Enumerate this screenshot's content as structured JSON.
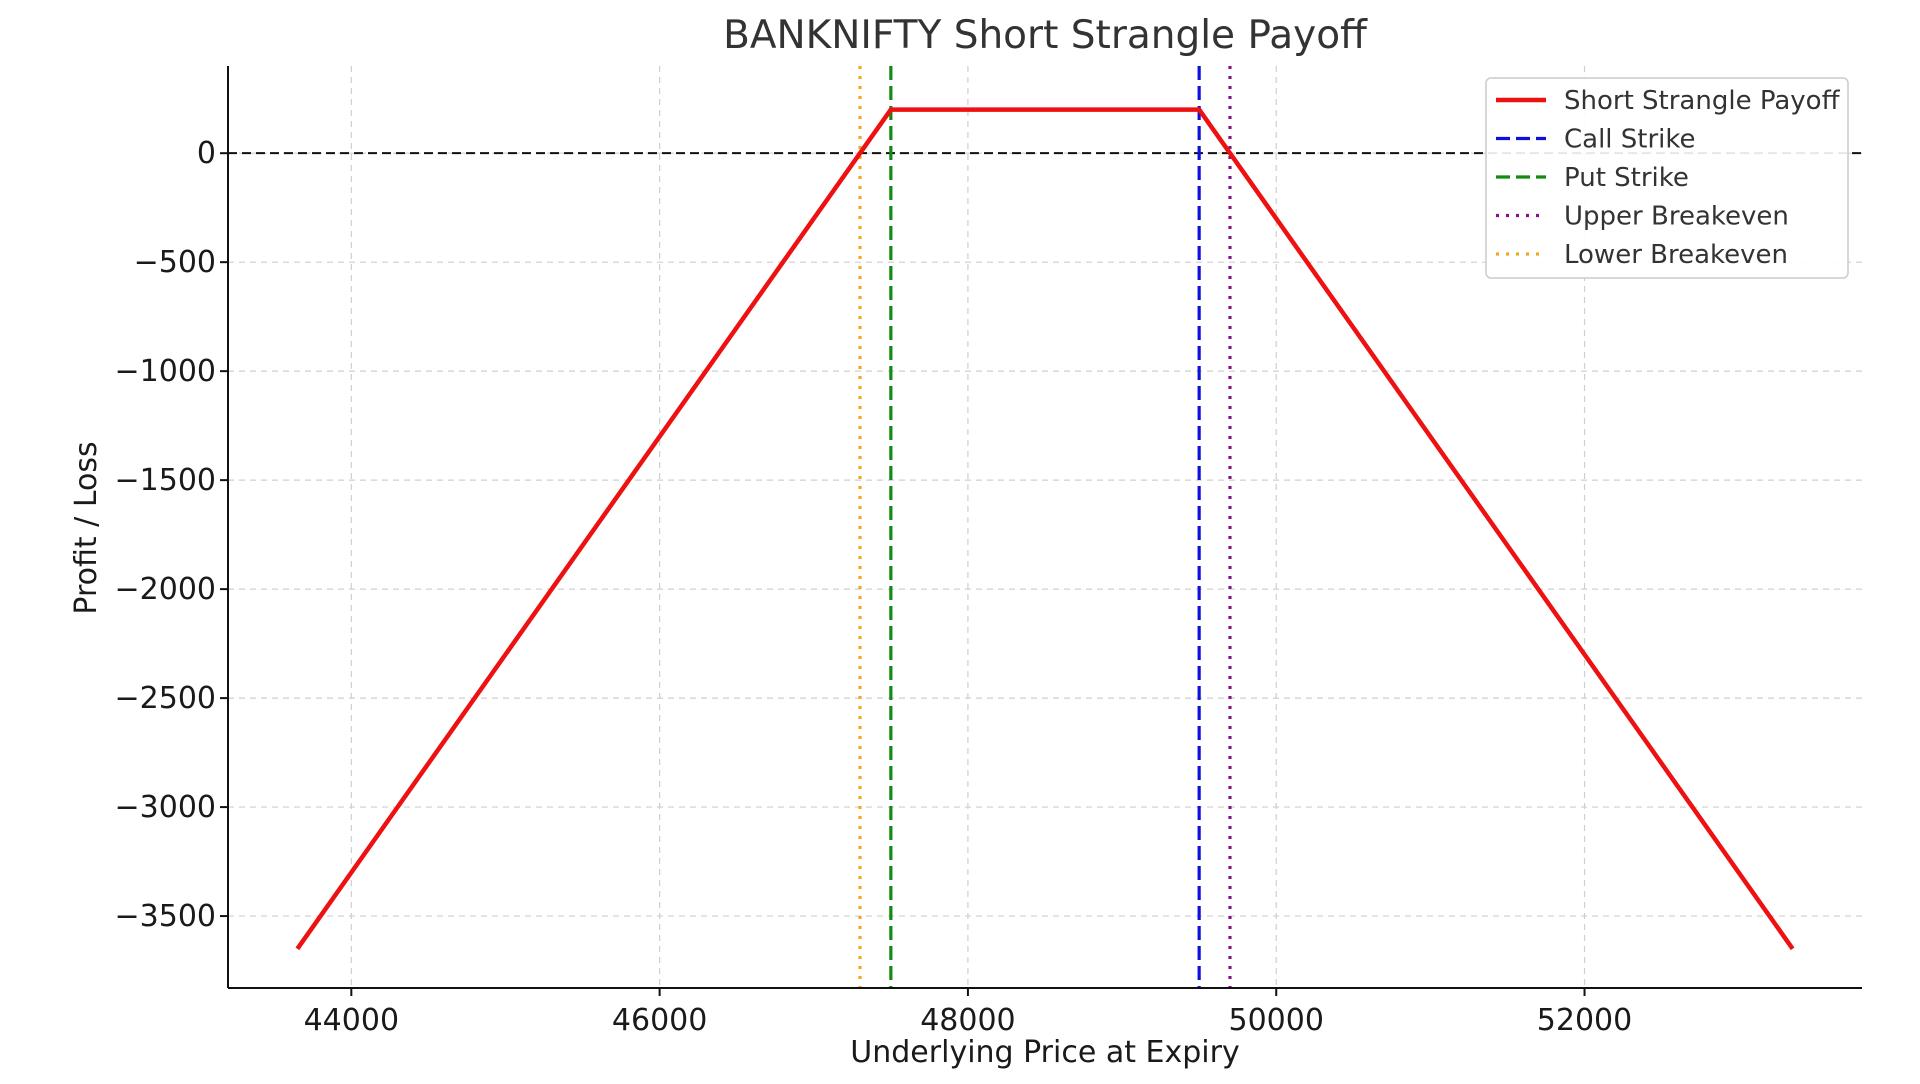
{
  "chart_data": {
    "type": "line",
    "title": "BANKNIFTY Short Strangle Payoff",
    "xlabel": "Underlying Price at Expiry",
    "ylabel": "Profit / Loss",
    "xlim": [
      43200,
      53800
    ],
    "ylim": [
      -3830,
      400
    ],
    "xticks": [
      44000,
      46000,
      48000,
      50000,
      52000
    ],
    "xtick_labels": [
      "44000",
      "46000",
      "48000",
      "50000",
      "52000"
    ],
    "yticks": [
      0,
      -500,
      -1000,
      -1500,
      -2000,
      -2500,
      -3000,
      -3500
    ],
    "ytick_labels": [
      "0",
      "−500",
      "−1000",
      "−1500",
      "−2000",
      "−2500",
      "−3000",
      "−3500"
    ],
    "grid": true,
    "legend_position": "top-right",
    "zero_line": 0,
    "series": [
      {
        "name": "Short Strangle Payoff",
        "color": "#ee1111",
        "style": "solid",
        "x": [
          43650,
          47500,
          49500,
          53350
        ],
        "y": [
          -3650,
          200,
          200,
          -3650
        ]
      }
    ],
    "vlines": [
      {
        "name": "Call Strike",
        "x": 49500,
        "color": "#1010dd",
        "style": "dashed"
      },
      {
        "name": "Put Strike",
        "x": 47500,
        "color": "#138a13",
        "style": "dashed"
      },
      {
        "name": "Upper Breakeven",
        "x": 49700,
        "color": "#8b0f8b",
        "style": "dotted"
      },
      {
        "name": "Lower Breakeven",
        "x": 47300,
        "color": "#f5a623",
        "style": "dotted"
      }
    ]
  }
}
